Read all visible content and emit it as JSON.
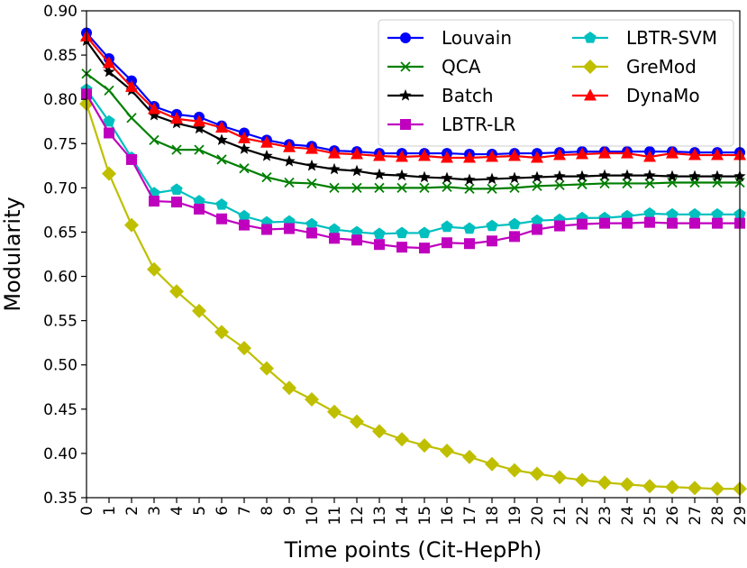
{
  "chart_data": {
    "type": "line",
    "xlabel": "Time points (Cit-HepPh)",
    "ylabel": "Modularity",
    "xlim": [
      0,
      29
    ],
    "ylim": [
      0.35,
      0.9
    ],
    "x": [
      0,
      1,
      2,
      3,
      4,
      5,
      6,
      7,
      8,
      9,
      10,
      11,
      12,
      13,
      14,
      15,
      16,
      17,
      18,
      19,
      20,
      21,
      22,
      23,
      24,
      25,
      26,
      27,
      28,
      29
    ],
    "x_tick_labels": [
      "0",
      "1",
      "2",
      "3",
      "4",
      "5",
      "6",
      "7",
      "8",
      "9",
      "10",
      "11",
      "12",
      "13",
      "14",
      "15",
      "16",
      "17",
      "18",
      "19",
      "20",
      "21",
      "22",
      "23",
      "24",
      "25",
      "26",
      "27",
      "28",
      "29"
    ],
    "y_ticks": [
      0.35,
      0.4,
      0.45,
      0.5,
      0.55,
      0.6,
      0.65,
      0.7,
      0.75,
      0.8,
      0.85,
      0.9
    ],
    "y_tick_labels": [
      "0.35",
      "0.40",
      "0.45",
      "0.50",
      "0.55",
      "0.60",
      "0.65",
      "0.70",
      "0.75",
      "0.80",
      "0.85",
      "0.90"
    ],
    "grid": false,
    "legend": {
      "placement": "top-right",
      "columns": 2
    },
    "series": [
      {
        "name": "Louvain",
        "color": "#0000ff",
        "marker": "circle",
        "values": [
          0.875,
          0.846,
          0.821,
          0.792,
          0.783,
          0.78,
          0.77,
          0.762,
          0.754,
          0.749,
          0.747,
          0.742,
          0.741,
          0.739,
          0.739,
          0.739,
          0.739,
          0.738,
          0.738,
          0.739,
          0.739,
          0.74,
          0.741,
          0.741,
          0.741,
          0.741,
          0.741,
          0.74,
          0.74,
          0.74
        ]
      },
      {
        "name": "QCA",
        "color": "#007f00",
        "marker": "x",
        "values": [
          0.829,
          0.81,
          0.779,
          0.754,
          0.743,
          0.743,
          0.732,
          0.722,
          0.712,
          0.706,
          0.705,
          0.7,
          0.7,
          0.7,
          0.7,
          0.7,
          0.701,
          0.699,
          0.699,
          0.7,
          0.702,
          0.703,
          0.704,
          0.705,
          0.705,
          0.705,
          0.706,
          0.706,
          0.706,
          0.706
        ]
      },
      {
        "name": "Batch",
        "color": "#000000",
        "marker": "star",
        "values": [
          0.866,
          0.831,
          0.81,
          0.782,
          0.773,
          0.767,
          0.754,
          0.744,
          0.736,
          0.73,
          0.725,
          0.721,
          0.719,
          0.715,
          0.714,
          0.712,
          0.711,
          0.709,
          0.71,
          0.711,
          0.712,
          0.713,
          0.713,
          0.714,
          0.714,
          0.714,
          0.713,
          0.713,
          0.713,
          0.713
        ]
      },
      {
        "name": "LBTR-LR",
        "color": "#bf00bf",
        "marker": "square",
        "values": [
          0.806,
          0.762,
          0.732,
          0.685,
          0.684,
          0.676,
          0.665,
          0.658,
          0.653,
          0.654,
          0.649,
          0.643,
          0.641,
          0.636,
          0.633,
          0.632,
          0.638,
          0.637,
          0.64,
          0.645,
          0.653,
          0.657,
          0.659,
          0.66,
          0.66,
          0.661,
          0.66,
          0.66,
          0.66,
          0.66
        ]
      },
      {
        "name": "LBTR-SVM",
        "color": "#00bfbf",
        "marker": "pentagon",
        "values": [
          0.811,
          0.775,
          0.734,
          0.694,
          0.698,
          0.685,
          0.681,
          0.668,
          0.661,
          0.662,
          0.659,
          0.653,
          0.65,
          0.648,
          0.649,
          0.649,
          0.656,
          0.654,
          0.657,
          0.659,
          0.663,
          0.664,
          0.666,
          0.666,
          0.668,
          0.671,
          0.67,
          0.67,
          0.67,
          0.67
        ]
      },
      {
        "name": "GreMod",
        "color": "#bfbf00",
        "marker": "diamond",
        "values": [
          0.795,
          0.716,
          0.658,
          0.608,
          0.583,
          0.561,
          0.537,
          0.519,
          0.496,
          0.474,
          0.461,
          0.447,
          0.436,
          0.425,
          0.416,
          0.409,
          0.403,
          0.396,
          0.388,
          0.381,
          0.377,
          0.373,
          0.37,
          0.367,
          0.365,
          0.363,
          0.362,
          0.361,
          0.36,
          0.36
        ]
      },
      {
        "name": "DynaMo",
        "color": "#ff0000",
        "marker": "triangle",
        "values": [
          0.871,
          0.841,
          0.814,
          0.789,
          0.778,
          0.775,
          0.768,
          0.756,
          0.751,
          0.746,
          0.744,
          0.739,
          0.738,
          0.736,
          0.735,
          0.736,
          0.734,
          0.734,
          0.735,
          0.736,
          0.734,
          0.737,
          0.738,
          0.739,
          0.739,
          0.735,
          0.739,
          0.737,
          0.737,
          0.737
        ]
      }
    ]
  }
}
